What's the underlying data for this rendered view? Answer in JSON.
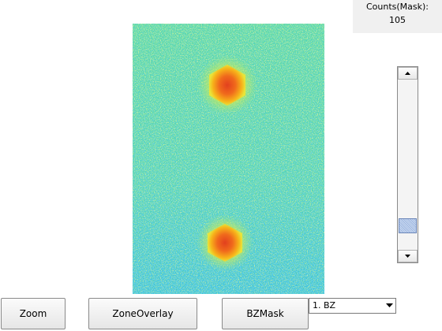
{
  "counts": {
    "label": "Counts(Mask):",
    "value": "105"
  },
  "buttons": [
    "Zoom",
    "ZoneOverlay",
    "BZMask"
  ],
  "dropdown": {
    "selected": "1. BZ"
  }
}
